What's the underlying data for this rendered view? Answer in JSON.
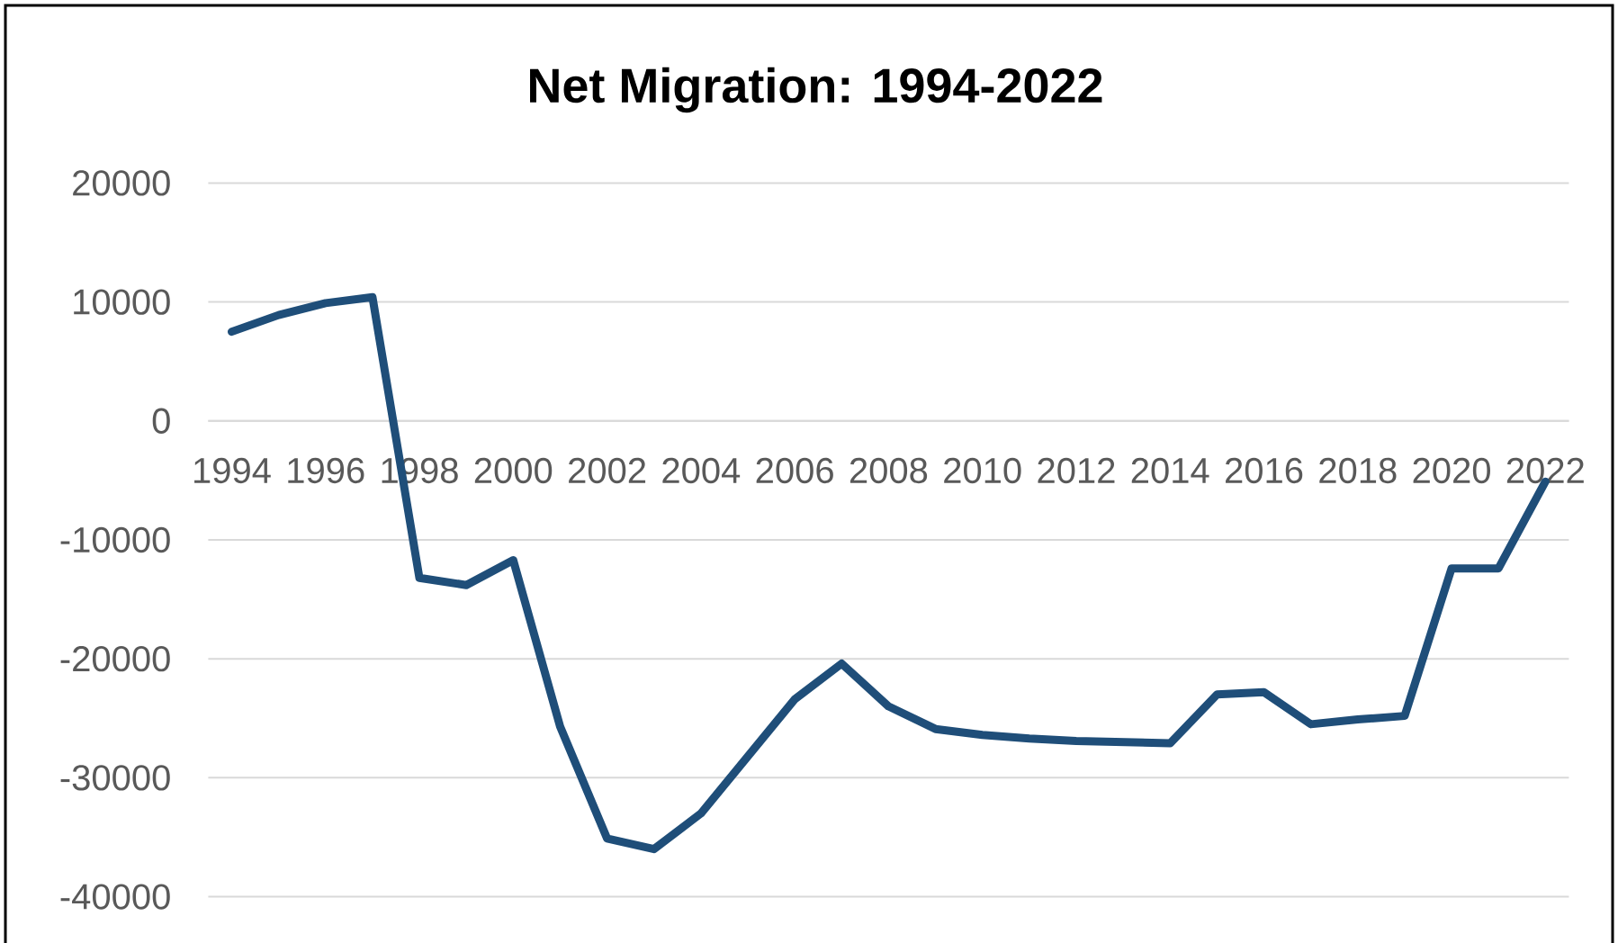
{
  "chart_data": {
    "type": "line",
    "title": "Net Migration: 1994-2022",
    "categories": [
      "1994",
      null,
      "1996",
      null,
      "1998",
      null,
      "2000",
      null,
      "2002",
      null,
      "2004",
      null,
      "2006",
      null,
      "2008",
      null,
      "2010",
      null,
      "2012",
      null,
      "2014",
      null,
      "2016",
      null,
      "2018",
      null,
      "2020",
      null,
      "2022"
    ],
    "series": [
      {
        "color": "#1f4e79",
        "values": [
          7500,
          8900,
          9900,
          10400,
          -13200,
          -13800,
          -11700,
          -25700,
          -35100,
          -36000,
          -33000,
          -28200,
          -23400,
          -20400,
          -24000,
          -25900,
          -26400,
          -26700,
          -26900,
          -27000,
          -27100,
          -23000,
          -22800,
          -25500,
          -25100,
          -24800,
          -12400,
          -12400,
          -5100
        ]
      }
    ],
    "ylim": [
      -40000,
      20000
    ],
    "yticks": [
      -40000,
      -30000,
      -20000,
      -10000,
      0,
      10000,
      20000
    ],
    "grid": "y",
    "line_style": "solid"
  }
}
